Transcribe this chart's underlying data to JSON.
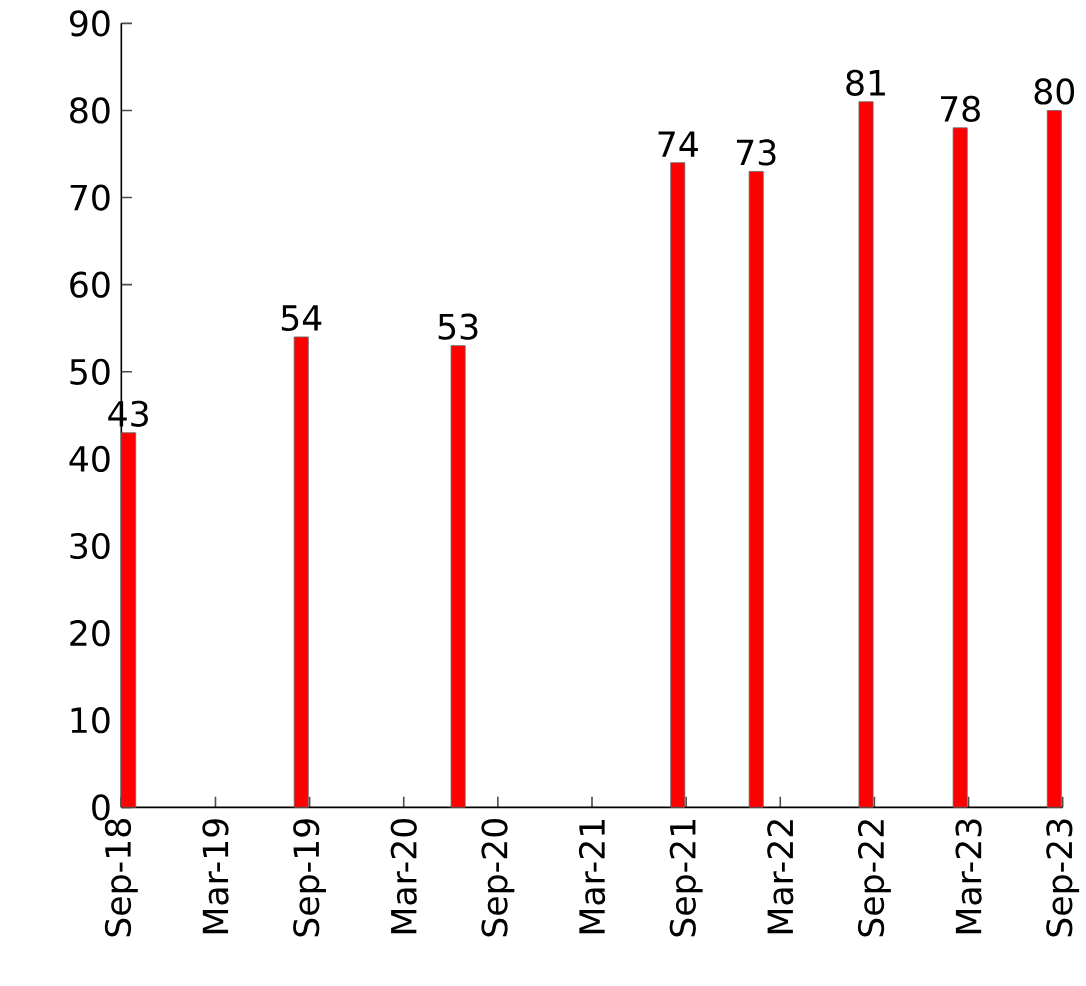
{
  "chart_data": {
    "type": "bar",
    "x": [
      "2018-09-15",
      "2019-08-15",
      "2020-06-15",
      "2021-08-15",
      "2022-01-15",
      "2022-08-15",
      "2023-02-15",
      "2023-08-15"
    ],
    "values": [
      43,
      54,
      53,
      74,
      73,
      81,
      78,
      80
    ],
    "color": "#ff0000",
    "data_labels": true,
    "xlim": [
      "2018-09",
      "2023-09"
    ],
    "xticks": [
      {
        "value": "2018-09",
        "label": "Sep-18"
      },
      {
        "value": "2019-03",
        "label": "Mar-19"
      },
      {
        "value": "2019-09",
        "label": "Sep-19"
      },
      {
        "value": "2020-03",
        "label": "Mar-20"
      },
      {
        "value": "2020-09",
        "label": "Sep-20"
      },
      {
        "value": "2021-03",
        "label": "Mar-21"
      },
      {
        "value": "2021-09",
        "label": "Sep-21"
      },
      {
        "value": "2022-03",
        "label": "Mar-22"
      },
      {
        "value": "2022-09",
        "label": "Sep-22"
      },
      {
        "value": "2023-03",
        "label": "Mar-23"
      },
      {
        "value": "2023-09",
        "label": "Sep-23"
      }
    ],
    "ylim": [
      0,
      90
    ],
    "yticks": [
      0,
      10,
      20,
      30,
      40,
      50,
      60,
      70,
      80,
      90
    ]
  }
}
